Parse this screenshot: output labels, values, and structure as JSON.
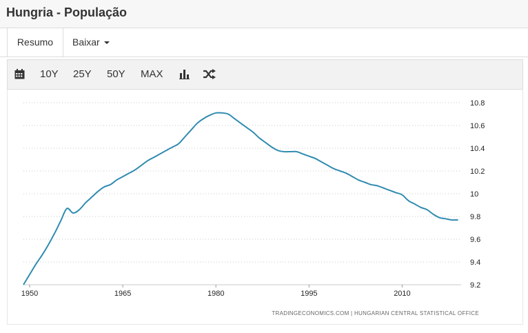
{
  "header": {
    "title": "Hungria - População"
  },
  "tabs": [
    {
      "label": "Resumo"
    },
    {
      "label": "Baixar"
    }
  ],
  "toolbar": {
    "calendar_icon": "calendar-icon",
    "ranges": [
      "10Y",
      "25Y",
      "50Y",
      "MAX"
    ],
    "chart_type_icon": "bar-chart-icon",
    "compare_icon": "shuffle-icon"
  },
  "colors": {
    "line": "#2f8bb0",
    "grid": "#c8c8c8"
  },
  "source": "TRADINGECONOMICS.COM  |  HUNGARIAN CENTRAL STATISTICAL OFFICE",
  "chart_data": {
    "type": "line",
    "title": "",
    "xlabel": "",
    "ylabel": "",
    "xlim": [
      1949,
      2019.5
    ],
    "ylim": [
      9.2,
      10.8
    ],
    "x_ticks": [
      1950,
      1965,
      1980,
      1995,
      2010
    ],
    "y_ticks": [
      9.2,
      9.4,
      9.6,
      9.8,
      10,
      10.2,
      10.4,
      10.6,
      10.8
    ],
    "y_tick_labels": [
      "9.2",
      "9.4",
      "9.6",
      "9.8",
      "10",
      "10.2",
      "10.4",
      "10.6",
      "10.8"
    ],
    "grid": true,
    "y_axis_position": "right",
    "series": [
      {
        "x": [
          1949,
          1950,
          1951,
          1952,
          1953,
          1954,
          1955,
          1956,
          1957,
          1958,
          1959,
          1960,
          1961,
          1962,
          1963,
          1964,
          1965,
          1966,
          1967,
          1968,
          1969,
          1970,
          1971,
          1972,
          1973,
          1974,
          1975,
          1976,
          1977,
          1978,
          1979,
          1980,
          1981,
          1982,
          1983,
          1984,
          1985,
          1986,
          1987,
          1988,
          1989,
          1990,
          1991,
          1992,
          1993,
          1994,
          1995,
          1996,
          1997,
          1998,
          1999,
          2000,
          2001,
          2002,
          2003,
          2004,
          2005,
          2006,
          2007,
          2008,
          2009,
          2010,
          2011,
          2012,
          2013,
          2014,
          2015,
          2016,
          2017,
          2018,
          2019
        ],
        "values": [
          9.2,
          9.29,
          9.38,
          9.46,
          9.55,
          9.65,
          9.76,
          9.87,
          9.83,
          9.86,
          9.92,
          9.97,
          10.02,
          10.06,
          10.08,
          10.12,
          10.15,
          10.18,
          10.21,
          10.25,
          10.29,
          10.32,
          10.35,
          10.38,
          10.41,
          10.44,
          10.5,
          10.56,
          10.62,
          10.66,
          10.69,
          10.71,
          10.71,
          10.7,
          10.66,
          10.62,
          10.58,
          10.54,
          10.49,
          10.45,
          10.41,
          10.38,
          10.37,
          10.37,
          10.37,
          10.35,
          10.33,
          10.31,
          10.28,
          10.25,
          10.22,
          10.2,
          10.18,
          10.15,
          10.12,
          10.1,
          10.08,
          10.07,
          10.05,
          10.03,
          10.01,
          9.99,
          9.94,
          9.91,
          9.88,
          9.86,
          9.82,
          9.79,
          9.78,
          9.77,
          9.77
        ]
      }
    ]
  }
}
